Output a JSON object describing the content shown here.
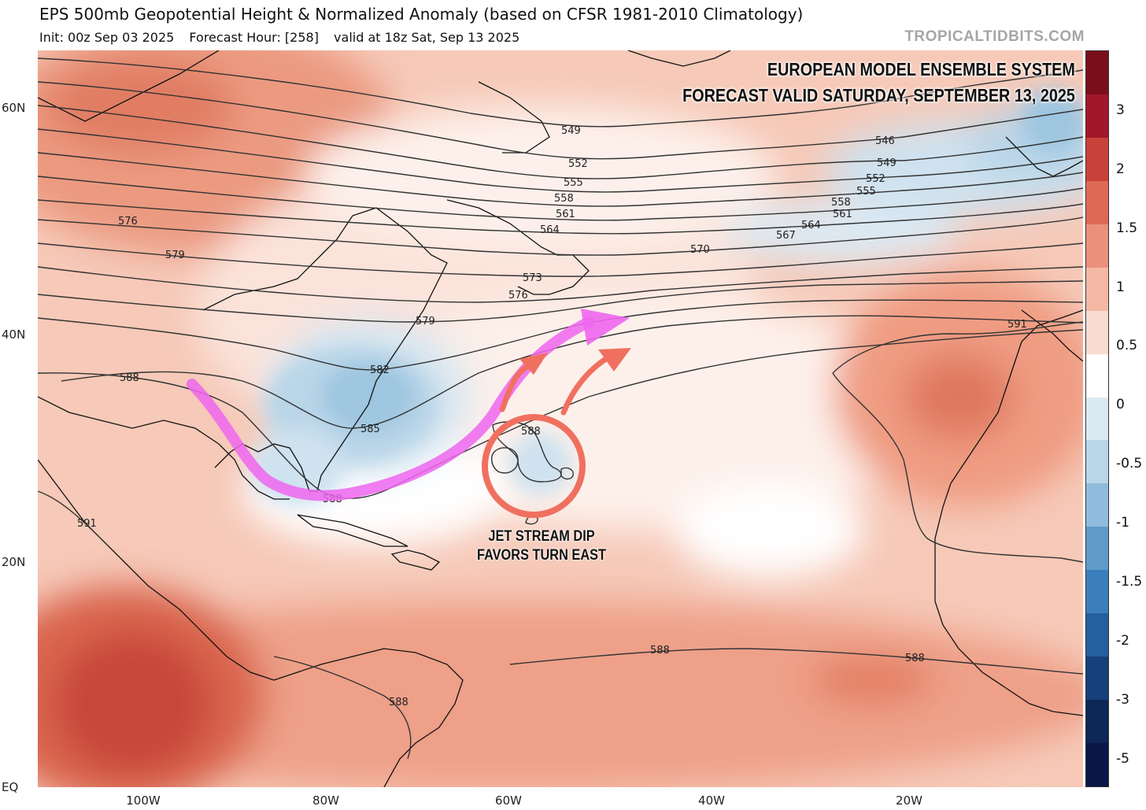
{
  "header": {
    "title": "EPS 500mb Geopotential Height & Normalized Anomaly (based on CFSR 1981-2010 Climatology)",
    "init": "Init: 00z Sep 03 2025",
    "forecast_hour": "Forecast Hour: [258]",
    "valid": "valid at 18z Sat, Sep 13 2025",
    "credit": "TROPICALTIDBITS.COM"
  },
  "annotations": {
    "headline_line1": "EUROPEAN MODEL ENSEMBLE SYSTEM",
    "headline_line2": "FORECAST VALID SATURDAY, SEPTEMBER 13, 2025",
    "note_line1": "JET STREAM DIP",
    "note_line2": "FAVORS TURN EAST",
    "jet_arrow_color": "#ee66ee",
    "turn_arrow_color": "#f07060",
    "circle_color": "#f07060"
  },
  "axes": {
    "lat_labels": [
      "60N",
      "40N",
      "20N",
      "EQ"
    ],
    "lon_labels": [
      "100W",
      "80W",
      "60W",
      "40W",
      "20W"
    ]
  },
  "contours": {
    "labels": [
      "549",
      "552",
      "555",
      "558",
      "561",
      "564",
      "570",
      "573",
      "576",
      "579",
      "546",
      "549",
      "552",
      "555",
      "558",
      "561",
      "564",
      "567",
      "576",
      "579",
      "582",
      "585",
      "588",
      "588",
      "588",
      "588",
      "588",
      "591",
      "591",
      "588"
    ]
  },
  "colorbar": {
    "labels": [
      "3",
      "2",
      "1.5",
      "1",
      "0.5",
      "0",
      "-0.5",
      "-1",
      "-1.5",
      "-2",
      "-3",
      "-5"
    ],
    "colors": [
      "#7a0f1c",
      "#a3172a",
      "#c8423a",
      "#de6a55",
      "#eb907a",
      "#f4b8a4",
      "#fadbd0",
      "#ffffff",
      "#dbe9f3",
      "#b9d5e8",
      "#8fbcdc",
      "#5f9cc9",
      "#3a7fbb",
      "#245fa0",
      "#16407a",
      "#0d2756",
      "#0a1548"
    ]
  }
}
